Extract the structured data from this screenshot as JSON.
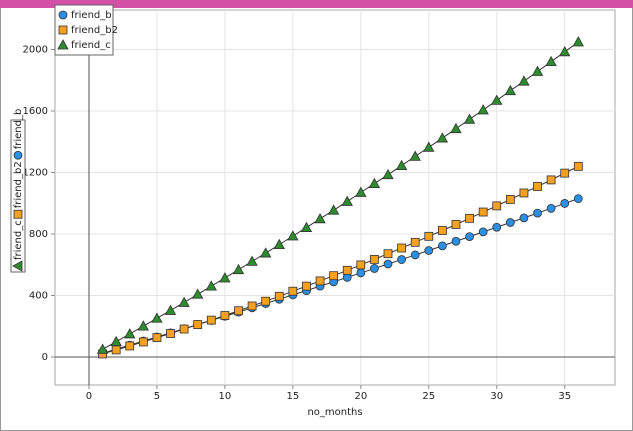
{
  "chart_data": {
    "type": "line",
    "x_label": "no_months",
    "x": [
      1,
      2,
      3,
      4,
      5,
      6,
      7,
      8,
      9,
      10,
      11,
      12,
      13,
      14,
      15,
      16,
      17,
      18,
      19,
      20,
      21,
      22,
      23,
      24,
      25,
      26,
      27,
      28,
      29,
      30,
      31,
      32,
      33,
      34,
      35,
      36
    ],
    "series": [
      {
        "name": "friend_b",
        "color": "#2b8fe3",
        "marker": "circle",
        "values": [
          25,
          51,
          77,
          104,
          130,
          157,
          184,
          211,
          238,
          265,
          292,
          320,
          348,
          376,
          404,
          432,
          461,
          489,
          518,
          547,
          576,
          605,
          634,
          664,
          693,
          723,
          753,
          783,
          814,
          844,
          875,
          905,
          936,
          967,
          999,
          1030
        ]
      },
      {
        "name": "friend_b2",
        "color": "#f5a021",
        "marker": "square",
        "values": [
          20,
          46,
          72,
          98,
          126,
          153,
          182,
          211,
          240,
          270,
          301,
          332,
          363,
          395,
          428,
          461,
          495,
          529,
          564,
          599,
          635,
          672,
          709,
          746,
          785,
          823,
          862,
          902,
          943,
          983,
          1025,
          1067,
          1109,
          1152,
          1196,
          1240
        ]
      },
      {
        "name": "friend_c",
        "color": "#2e8b2e",
        "marker": "triangle",
        "values": [
          50,
          100,
          150,
          201,
          252,
          303,
          355,
          408,
          461,
          514,
          568,
          622,
          676,
          731,
          787,
          842,
          899,
          955,
          1012,
          1070,
          1128,
          1186,
          1245,
          1305,
          1364,
          1424,
          1485,
          1546,
          1607,
          1669,
          1732,
          1794,
          1857,
          1921,
          1985,
          2049
        ]
      }
    ],
    "xlim": [
      -2.5,
      38.7
    ],
    "xticks": [
      0,
      5,
      10,
      15,
      20,
      25,
      30,
      35
    ],
    "ylim": [
      -182,
      2257
    ],
    "yticks": [
      0,
      400,
      800,
      1200,
      1600,
      2000
    ],
    "grid": true,
    "legend": "top-left"
  }
}
